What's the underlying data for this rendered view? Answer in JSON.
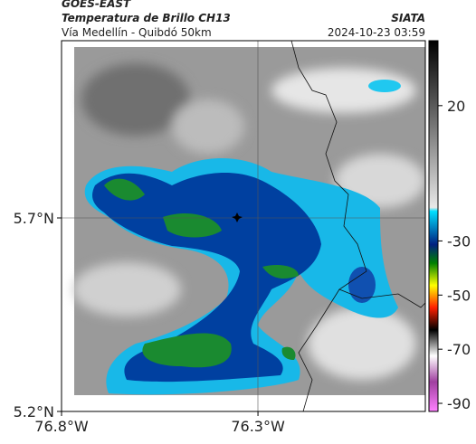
{
  "header": {
    "source": "GOES-EAST",
    "product": "Temperatura de Brillo CH13",
    "region": "Vía Medellín - Quibdó 50km",
    "agency": "SIATA",
    "timestamp": "2024-10-23 03:59"
  },
  "map": {
    "lat_lim": [
      5.2,
      6.158
    ],
    "lon_lim": [
      -76.8,
      -75.874
    ],
    "lat_ticks": [
      {
        "value": 5.7,
        "label": "5.7°N"
      },
      {
        "value": 5.2,
        "label": "5.2°N"
      }
    ],
    "lon_ticks": [
      {
        "value": -76.8,
        "label": "76.8°W"
      },
      {
        "value": -76.3,
        "label": "76.3°W"
      }
    ]
  },
  "colorbar": {
    "lim": [
      -93,
      44
    ],
    "ticks": [
      20,
      -30,
      -50,
      -70,
      -90
    ]
  }
}
